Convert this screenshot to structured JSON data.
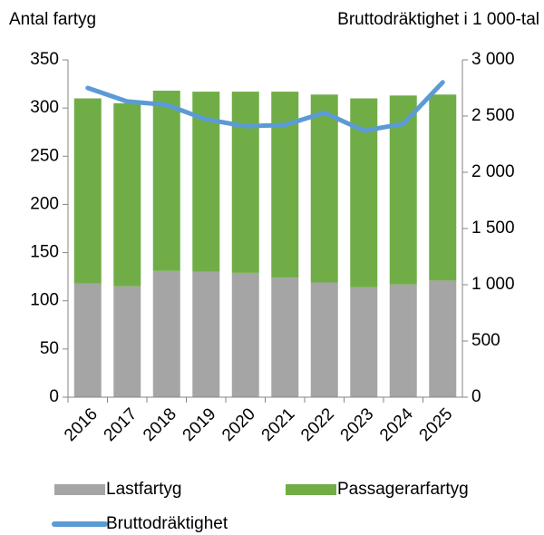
{
  "chart_data": {
    "type": "bar",
    "stacked": true,
    "ylabel": "Antal fartyg",
    "y2label": "Bruttodräktighet i 1 000-tal",
    "categories": [
      "2016",
      "2017",
      "2018",
      "2019",
      "2020",
      "2021",
      "2022",
      "2023",
      "2024",
      "2025"
    ],
    "series": [
      {
        "name": "Lastfartyg",
        "color": "#a5a5a5",
        "values": [
          118,
          115,
          131,
          130,
          129,
          124,
          119,
          114,
          117,
          121
        ]
      },
      {
        "name": "Passagerarfartyg",
        "color": "#70ad47",
        "values": [
          192,
          190,
          187,
          187,
          188,
          193,
          195,
          196,
          196,
          193
        ]
      },
      {
        "name": "Bruttodräktighet",
        "color": "#5b9bd5",
        "type": "line",
        "axis": "y2",
        "values": [
          2750,
          2630,
          2600,
          2470,
          2410,
          2420,
          2530,
          2370,
          2430,
          2800
        ]
      }
    ],
    "ylim": [
      0,
      350
    ],
    "yticks": [
      0,
      50,
      100,
      150,
      200,
      250,
      300,
      350
    ],
    "y2lim": [
      0,
      3000
    ],
    "y2ticks": [
      0,
      500,
      {
        "value": 1000,
        "label": "1 000"
      },
      {
        "value": 1500,
        "label": "1 500"
      },
      {
        "value": 2000,
        "label": "2 000"
      },
      {
        "value": 2500,
        "label": "2 500"
      },
      {
        "value": 3000,
        "label": "3 000"
      }
    ],
    "legend": "bottom"
  }
}
